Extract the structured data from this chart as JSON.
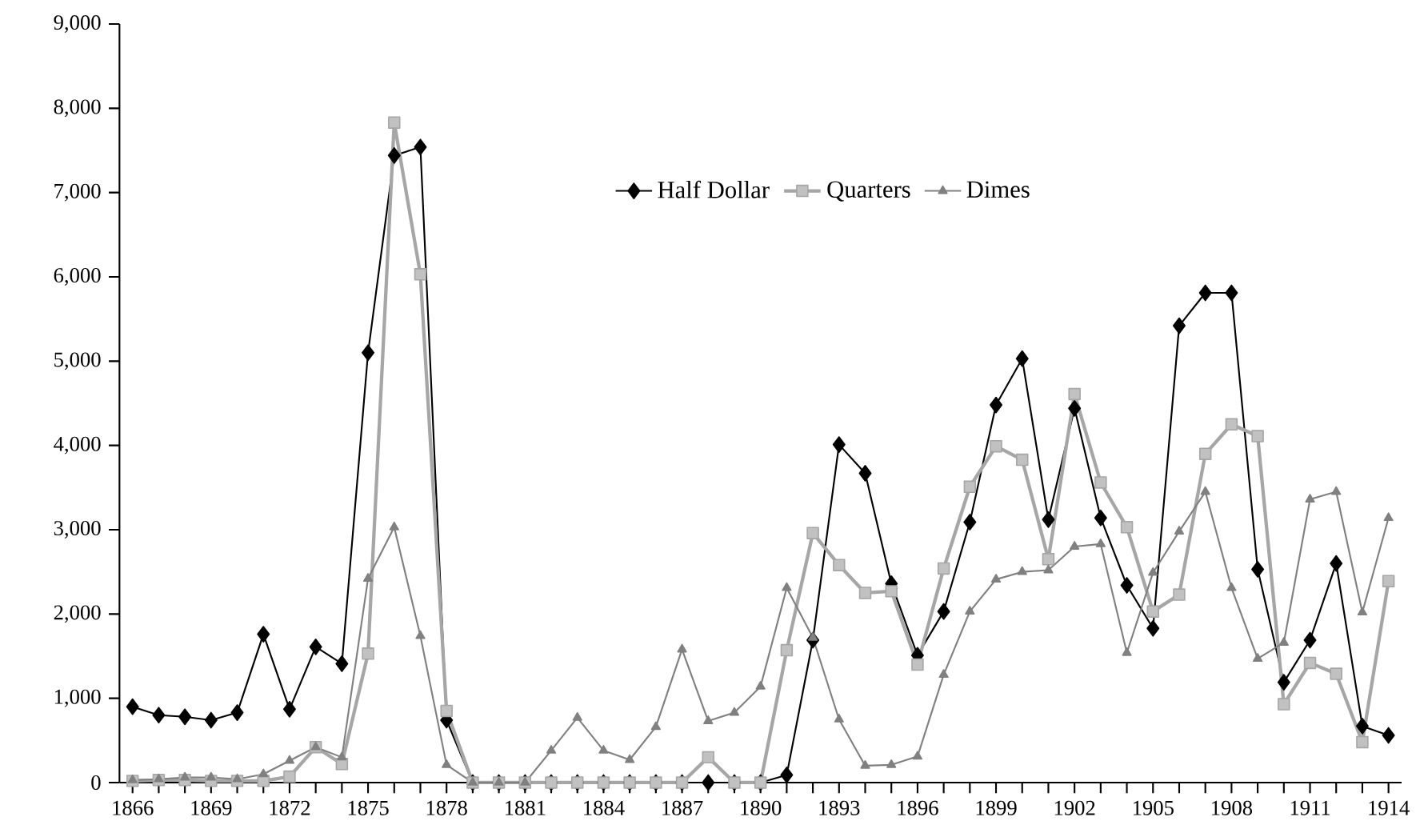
{
  "chart_data": {
    "type": "line",
    "x": [
      1866,
      1867,
      1868,
      1869,
      1870,
      1871,
      1872,
      1873,
      1874,
      1875,
      1876,
      1877,
      1878,
      1879,
      1880,
      1881,
      1882,
      1883,
      1884,
      1885,
      1886,
      1887,
      1888,
      1889,
      1890,
      1891,
      1892,
      1893,
      1894,
      1895,
      1896,
      1897,
      1898,
      1899,
      1900,
      1901,
      1902,
      1903,
      1904,
      1905,
      1906,
      1907,
      1908,
      1909,
      1910,
      1911,
      1912,
      1913,
      1914
    ],
    "series": [
      {
        "name": "Half Dollar",
        "color": "#000000",
        "marker": "diamond",
        "values": [
          900,
          800,
          780,
          740,
          830,
          1760,
          870,
          1610,
          1410,
          5100,
          7440,
          7540,
          740,
          0,
          0,
          0,
          0,
          0,
          0,
          0,
          0,
          0,
          0,
          0,
          0,
          90,
          1690,
          4010,
          3670,
          2360,
          1510,
          2030,
          3090,
          4480,
          5030,
          3120,
          4440,
          3140,
          2340,
          1830,
          5420,
          5810,
          5810,
          2530,
          1190,
          1690,
          2600,
          670,
          560
        ]
      },
      {
        "name": "Quarters",
        "color": "#a6a6a6",
        "marker": "square",
        "values": [
          20,
          30,
          30,
          20,
          20,
          20,
          70,
          420,
          220,
          1530,
          7830,
          6030,
          850,
          0,
          0,
          0,
          0,
          0,
          0,
          0,
          0,
          0,
          300,
          0,
          0,
          1570,
          2960,
          2580,
          2250,
          2270,
          1400,
          2540,
          3510,
          3990,
          3830,
          2650,
          4610,
          3560,
          3030,
          2030,
          2230,
          3900,
          4250,
          4110,
          930,
          1420,
          1290,
          480,
          2390
        ]
      },
      {
        "name": "Dimes",
        "color": "#808080",
        "marker": "triangle",
        "values": [
          30,
          40,
          60,
          60,
          40,
          100,
          260,
          420,
          300,
          2420,
          3030,
          1740,
          210,
          0,
          0,
          0,
          380,
          770,
          380,
          270,
          660,
          1580,
          730,
          830,
          1140,
          2310,
          1720,
          750,
          200,
          210,
          310,
          1280,
          2030,
          2410,
          2500,
          2520,
          2800,
          2830,
          1540,
          2490,
          2980,
          3450,
          2310,
          1470,
          1660,
          3360,
          3450,
          2020,
          3140
        ]
      }
    ],
    "xlim": [
      1865.5,
      1914.5
    ],
    "xticks": [
      1866,
      1869,
      1872,
      1875,
      1878,
      1881,
      1884,
      1887,
      1890,
      1893,
      1896,
      1899,
      1902,
      1905,
      1908,
      1911,
      1914
    ],
    "ylim": [
      0,
      9000
    ],
    "yticks": [
      {
        "value": 0,
        "label": "0"
      },
      {
        "value": 1000,
        "label": "1,000"
      },
      {
        "value": 2000,
        "label": "2,000"
      },
      {
        "value": 3000,
        "label": "3,000"
      },
      {
        "value": 4000,
        "label": "4,000"
      },
      {
        "value": 5000,
        "label": "5,000"
      },
      {
        "value": 6000,
        "label": "6,000"
      },
      {
        "value": 7000,
        "label": "7,000"
      },
      {
        "value": 8000,
        "label": "8,000"
      },
      {
        "value": 9000,
        "label": "9,000"
      }
    ],
    "grid": false,
    "legend": "top"
  }
}
